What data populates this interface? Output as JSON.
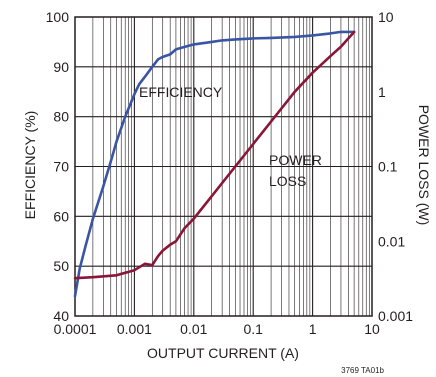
{
  "chart_data": {
    "type": "line",
    "xlabel": "OUTPUT CURRENT (A)",
    "ylabel_left": "EFFICIENCY (%)",
    "ylabel_right": "POWER LOSS (W)",
    "x_scale": "log",
    "x_range": [
      0.0001,
      10
    ],
    "x_ticks": [
      "0.0001",
      "0.001",
      "0.01",
      "0.1",
      "1",
      "10"
    ],
    "y_left_range": [
      40,
      100
    ],
    "y_left_ticks": [
      "40",
      "50",
      "60",
      "70",
      "80",
      "90",
      "100"
    ],
    "y_right_scale": "log",
    "y_right_range": [
      0.001,
      10
    ],
    "y_right_ticks": [
      "0.001",
      "0.01",
      "0.1",
      "1",
      "10"
    ],
    "grid": true,
    "series": [
      {
        "name": "EFFICIENCY",
        "axis": "left",
        "color": "#3a55a4",
        "points": [
          [
            0.0001,
            44.0
          ],
          [
            0.00012,
            49.5
          ],
          [
            0.00015,
            54.0
          ],
          [
            0.0002,
            59.5
          ],
          [
            0.0003,
            66.0
          ],
          [
            0.0004,
            71.0
          ],
          [
            0.0005,
            75.0
          ],
          [
            0.0007,
            80.0
          ],
          [
            0.001,
            84.5
          ],
          [
            0.0012,
            86.5
          ],
          [
            0.0015,
            88.0
          ],
          [
            0.002,
            90.0
          ],
          [
            0.0025,
            91.5
          ],
          [
            0.003,
            92.0
          ],
          [
            0.004,
            92.5
          ],
          [
            0.005,
            93.5
          ],
          [
            0.007,
            94.0
          ],
          [
            0.01,
            94.5
          ],
          [
            0.02,
            95.0
          ],
          [
            0.03,
            95.3
          ],
          [
            0.05,
            95.5
          ],
          [
            0.1,
            95.7
          ],
          [
            0.2,
            95.8
          ],
          [
            0.5,
            96.0
          ],
          [
            1,
            96.3
          ],
          [
            2,
            96.7
          ],
          [
            3,
            97.0
          ],
          [
            5,
            97.0
          ]
        ]
      },
      {
        "name": "POWER LOSS",
        "axis": "right",
        "color": "#8a1538",
        "points": [
          [
            0.0001,
            0.0032
          ],
          [
            0.0002,
            0.0033
          ],
          [
            0.0005,
            0.0035
          ],
          [
            0.001,
            0.0041
          ],
          [
            0.0015,
            0.005
          ],
          [
            0.002,
            0.0048
          ],
          [
            0.0025,
            0.0063
          ],
          [
            0.003,
            0.0075
          ],
          [
            0.004,
            0.009
          ],
          [
            0.005,
            0.01
          ],
          [
            0.007,
            0.015
          ],
          [
            0.01,
            0.02
          ],
          [
            0.02,
            0.04
          ],
          [
            0.05,
            0.1
          ],
          [
            0.1,
            0.2
          ],
          [
            0.2,
            0.4
          ],
          [
            0.5,
            1.0
          ],
          [
            1,
            1.8
          ],
          [
            2,
            3.0
          ],
          [
            3,
            4.0
          ],
          [
            5,
            6.3
          ]
        ]
      }
    ],
    "annotations": {
      "efficiency": "EFFICIENCY",
      "power_loss_line1": "POWER",
      "power_loss_line2": "LOSS"
    },
    "figure_code": "3769 TA01b"
  }
}
